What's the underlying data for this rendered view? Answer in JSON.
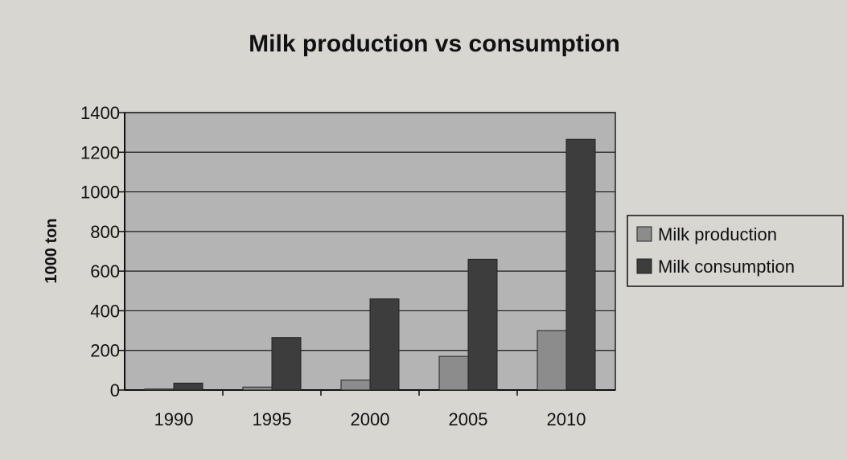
{
  "chart_data": {
    "type": "bar",
    "title": "Milk production vs consumption",
    "xlabel": "",
    "ylabel": "1000 ton",
    "categories": [
      "1990",
      "1995",
      "2000",
      "2005",
      "2010"
    ],
    "series": [
      {
        "name": "Milk production",
        "values": [
          5,
          15,
          50,
          170,
          300
        ],
        "color": "#8c8c8c"
      },
      {
        "name": "Milk consumption",
        "values": [
          35,
          265,
          460,
          660,
          1265
        ],
        "color": "#3d3d3d"
      }
    ],
    "ylim": [
      0,
      1400
    ],
    "yticks": [
      0,
      200,
      400,
      600,
      800,
      1000,
      1200,
      1400
    ],
    "grid": true,
    "legend": "right",
    "plot_background": "#b4b4b4"
  }
}
